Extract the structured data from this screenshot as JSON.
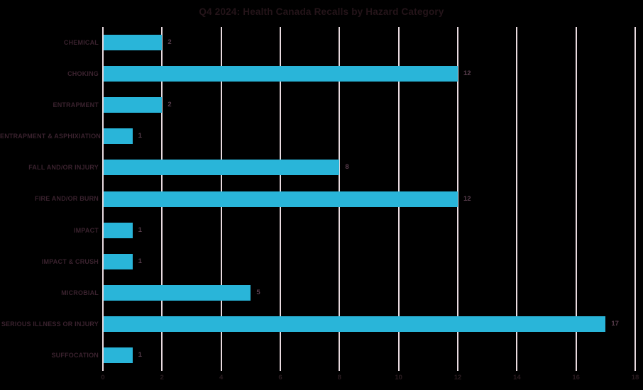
{
  "title": "Q4 2024: Health Canada Recalls by Hazard Category",
  "colors": {
    "background": "#000000",
    "bar": "#29B5D9",
    "gridline": "#E8DADF",
    "title_text": "#241419",
    "category_text": "#3A222E",
    "value_text": "#5A3E4E",
    "tick_text": "#2B1C21"
  },
  "chart_data": {
    "type": "bar",
    "orientation": "horizontal",
    "title": "Q4 2024: Health Canada Recalls by Hazard Category",
    "categories": [
      "CHEMICAL",
      "CHOKING",
      "ENTRAPMENT",
      "ENTRAPMENT & ASPHIXIATION",
      "FALL AND/OR INJURY",
      "FIRE AND/OR BURN",
      "IMPACT",
      "IMPACT & CRUSH",
      "MICROBIAL",
      "SERIOUS ILLNESS OR INJURY",
      "SUFFOCATION"
    ],
    "values": [
      2,
      12,
      2,
      1,
      8,
      12,
      1,
      1,
      5,
      17,
      1
    ],
    "value_labels": [
      "2",
      "12",
      "2",
      "1",
      "8",
      "12",
      "1",
      "1",
      "5",
      "17",
      "1"
    ],
    "xlabel": "",
    "ylabel": "",
    "xlim": [
      0,
      18
    ],
    "xticks": [
      0,
      2,
      4,
      6,
      8,
      10,
      12,
      14,
      16,
      18
    ],
    "grid": "vertical-only",
    "legend": "none",
    "bar_color": "#29B5D9"
  }
}
